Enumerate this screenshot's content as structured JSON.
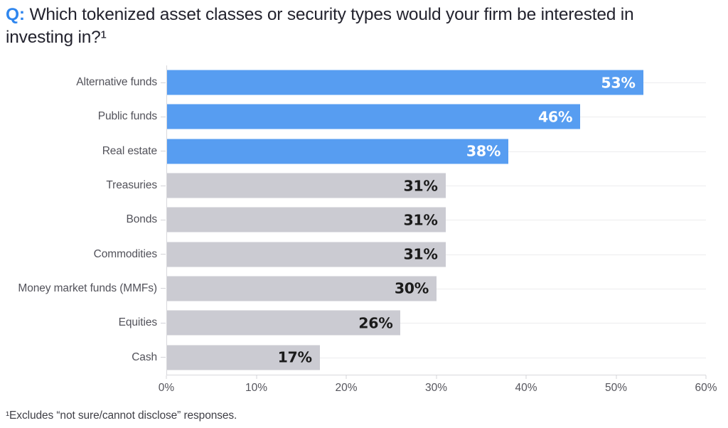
{
  "title": {
    "q_prefix": "Q:",
    "lines": [
      "Which tokenized asset classes or security types would your firm be interested in",
      "investing in?¹"
    ]
  },
  "chart_data": {
    "type": "bar",
    "orientation": "horizontal",
    "categories": [
      "Alternative funds",
      "Public funds",
      "Real estate",
      "Treasuries",
      "Bonds",
      "Commodities",
      "Money market funds (MMFs)",
      "Equities",
      "Cash"
    ],
    "values": [
      53,
      46,
      38,
      31,
      31,
      31,
      30,
      26,
      17
    ],
    "value_labels": [
      "53%",
      "46%",
      "38%",
      "31%",
      "31%",
      "31%",
      "30%",
      "26%",
      "17%"
    ],
    "highlighted": [
      true,
      true,
      true,
      false,
      false,
      false,
      false,
      false,
      false
    ],
    "xlim": [
      0,
      60
    ],
    "x_ticks": [
      "0%",
      "10%",
      "20%",
      "30%",
      "40%",
      "50%",
      "60%"
    ],
    "grid": "horizontal row gridlines",
    "legend": "none",
    "colors": {
      "highlight_bar": "#579df1",
      "default_bar": "#cbcbd2",
      "value_on_highlight": "#ffffff",
      "value_on_default": "#1b1b1b",
      "axis_line": "#d8d8dc",
      "gridline": "#ececee",
      "category_label": "#52525a",
      "tick_label": "#55555c",
      "title_text": "#23232e",
      "q_accent": "#2f86ee"
    }
  },
  "footnote": "¹Excludes “not sure/cannot disclose” responses."
}
